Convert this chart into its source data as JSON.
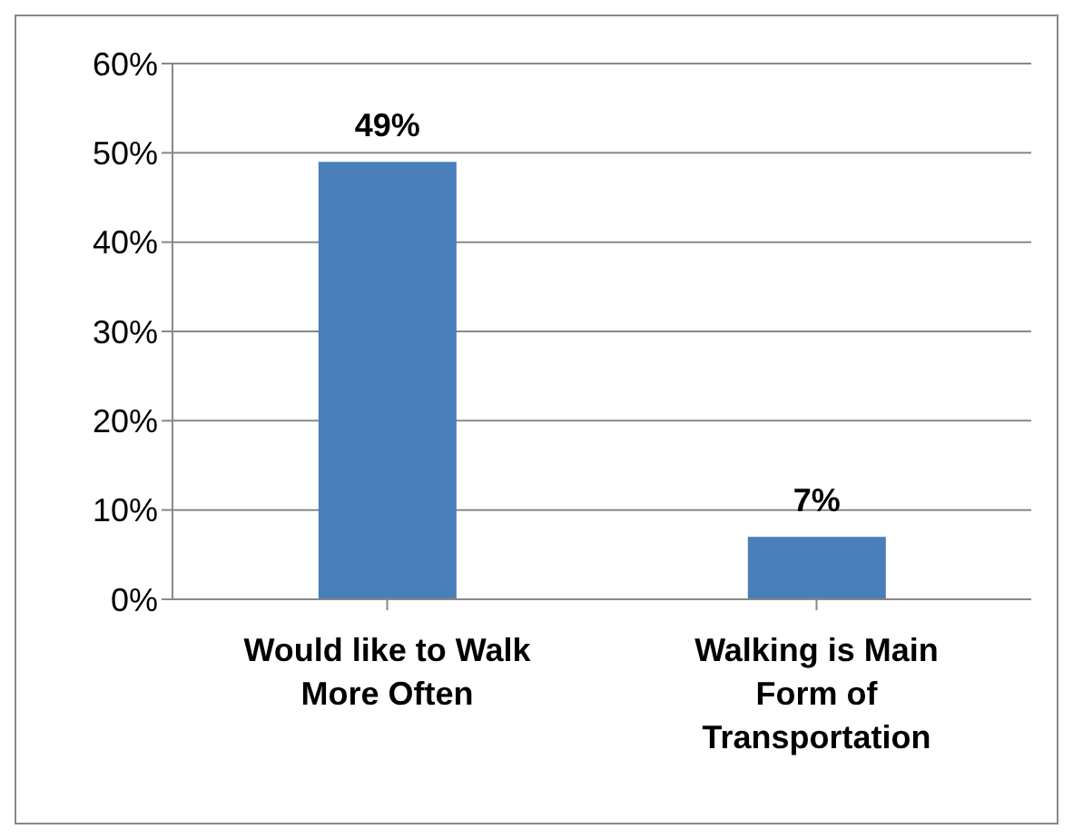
{
  "chart_data": {
    "type": "bar",
    "categories": [
      "Would like to Walk More Often",
      "Walking is Main Form of Transportation"
    ],
    "values": [
      49,
      7
    ],
    "color": "#4a7ebb",
    "ylim": [
      0,
      60
    ],
    "yticks": [
      {
        "value": 0,
        "label": "0%"
      },
      {
        "value": 10,
        "label": "10%"
      },
      {
        "value": 20,
        "label": "20%"
      },
      {
        "value": 30,
        "label": "30%"
      },
      {
        "value": 40,
        "label": "40%"
      },
      {
        "value": 50,
        "label": "50%"
      },
      {
        "value": 60,
        "label": "60%"
      }
    ],
    "value_labels": [
      "49%",
      "7%"
    ],
    "grid": "y",
    "legend": false
  }
}
